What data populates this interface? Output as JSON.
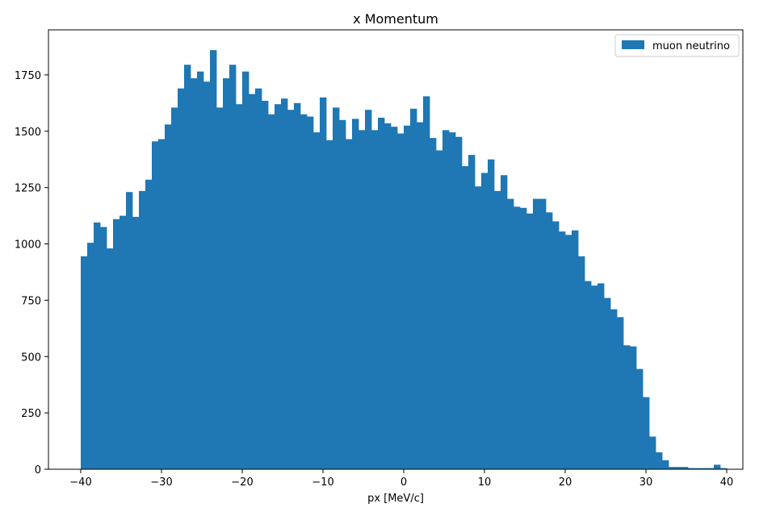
{
  "chart_data": {
    "type": "bar",
    "title": "x Momentum",
    "xlabel": "px [MeV/c]",
    "ylabel": "",
    "xlim": [
      -44,
      42
    ],
    "ylim": [
      0,
      1950
    ],
    "bin_start": -40,
    "bin_width": 0.8,
    "x_ticks": [
      -40,
      -30,
      -20,
      -10,
      0,
      10,
      20,
      30,
      40
    ],
    "y_ticks": [
      0,
      250,
      500,
      750,
      1000,
      1250,
      1500,
      1750
    ],
    "grid": false,
    "legend_position": "top-right",
    "series": [
      {
        "name": "muon neutrino",
        "color": "#1f77b4",
        "values": [
          945,
          1005,
          1095,
          1075,
          980,
          1110,
          1125,
          1230,
          1120,
          1235,
          1285,
          1455,
          1465,
          1530,
          1605,
          1690,
          1795,
          1735,
          1765,
          1720,
          1860,
          1605,
          1735,
          1795,
          1620,
          1765,
          1665,
          1690,
          1635,
          1575,
          1620,
          1645,
          1595,
          1625,
          1575,
          1565,
          1495,
          1650,
          1460,
          1605,
          1550,
          1465,
          1555,
          1505,
          1595,
          1505,
          1560,
          1535,
          1520,
          1490,
          1525,
          1600,
          1540,
          1655,
          1470,
          1415,
          1505,
          1495,
          1475,
          1345,
          1395,
          1255,
          1315,
          1375,
          1235,
          1305,
          1200,
          1165,
          1160,
          1135,
          1200,
          1200,
          1140,
          1100,
          1055,
          1040,
          1060,
          945,
          835,
          815,
          825,
          760,
          710,
          675,
          550,
          545,
          445,
          320,
          145,
          75,
          40,
          10,
          10,
          10,
          5,
          5,
          5,
          5,
          20,
          5
        ]
      }
    ]
  }
}
